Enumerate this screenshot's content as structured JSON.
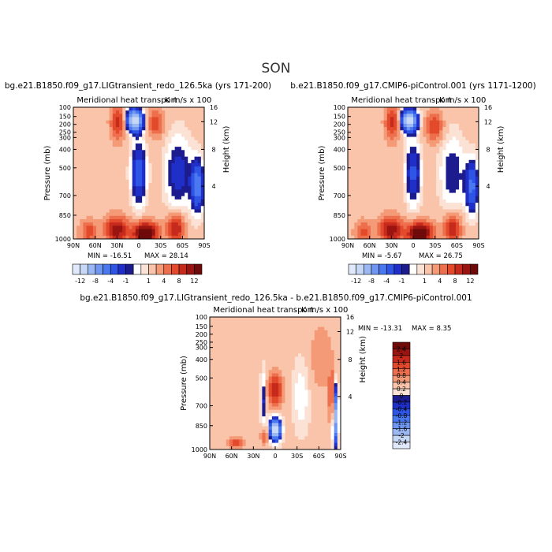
{
  "page_title": "SON",
  "colors": {
    "neg": [
      "#1c1c8f",
      "#1f2fc8",
      "#2e55e6",
      "#4a78f0",
      "#6f97f2",
      "#9cb8f3",
      "#c7d8f6",
      "#dfe9fb"
    ],
    "pos": [
      "#fbe2d5",
      "#f9c4aa",
      "#f49a77",
      "#ee6f4d",
      "#e24a2b",
      "#c62a1c",
      "#9a1411",
      "#6e0a0a"
    ],
    "zero": "#ffffff"
  },
  "chart_data": [
    {
      "type": "heatmap",
      "title": "bg.e21.B1850.f09_g17.LIGtransient_redo_126.5ka (yrs 171-200)",
      "subtitle": "Meridional heat transport",
      "units": "K m/s x 100",
      "xlabel": "",
      "ylabel": "Pressure (mb)",
      "y2label": "Height (km)",
      "x_ticks": [
        "90N",
        "60N",
        "30N",
        "0",
        "30S",
        "60S",
        "90S"
      ],
      "y_ticks": [
        "100",
        "150",
        "200",
        "250",
        "300",
        "400",
        "500",
        "700",
        "850",
        "1000"
      ],
      "y2_ticks": [
        "16",
        "12",
        "8",
        "4"
      ],
      "min_label": "MIN = -16.51",
      "max_label": "MAX = 28.14",
      "min": -16.51,
      "max": 28.14,
      "colorbar": [
        "-12",
        "-8",
        "-4",
        "-1",
        "1",
        "4",
        "8",
        "12"
      ]
    },
    {
      "type": "heatmap",
      "title": "b.e21.B1850.f09_g17.CMIP6-piControl.001 (yrs 1171-1200)",
      "subtitle": "Meridional heat transport",
      "units": "K m/s x 100",
      "xlabel": "",
      "ylabel": "Pressure (mb)",
      "y2label": "Height (km)",
      "x_ticks": [
        "90N",
        "60N",
        "30N",
        "0",
        "30S",
        "60S",
        "90S"
      ],
      "y_ticks": [
        "100",
        "150",
        "200",
        "250",
        "300",
        "400",
        "500",
        "700",
        "850",
        "1000"
      ],
      "y2_ticks": [
        "16",
        "12",
        "8",
        "4"
      ],
      "min_label": "MIN = -5.67",
      "max_label": "MAX = 26.75",
      "min": -5.67,
      "max": 26.75,
      "colorbar": [
        "-12",
        "-8",
        "-4",
        "-1",
        "1",
        "4",
        "8",
        "12"
      ]
    },
    {
      "type": "heatmap",
      "title": "bg.e21.B1850.f09_g17.LIGtransient_redo_126.5ka - b.e21.B1850.f09_g17.CMIP6-piControl.001",
      "subtitle": "Meridional heat transport",
      "units": "K m/s x 100",
      "xlabel": "",
      "ylabel": "Pressure (mb)",
      "y2label": "Height (km)",
      "x_ticks": [
        "90N",
        "60N",
        "30N",
        "0",
        "30S",
        "60S",
        "90S"
      ],
      "y_ticks": [
        "100",
        "150",
        "200",
        "250",
        "300",
        "400",
        "500",
        "700",
        "850",
        "1000"
      ],
      "y2_ticks": [
        "16",
        "12",
        "8",
        "4"
      ],
      "min_label": "MIN = -13.31",
      "max_label": "MAX = 8.35",
      "min": -13.31,
      "max": 8.35,
      "colorbar": [
        "2.4",
        "2",
        "1.6",
        "1.2",
        "0.8",
        "0.4",
        "0.2",
        "0",
        "-0.2",
        "-0.4",
        "-0.8",
        "-1.2",
        "-1.6",
        "-2",
        "-2.4"
      ]
    }
  ]
}
